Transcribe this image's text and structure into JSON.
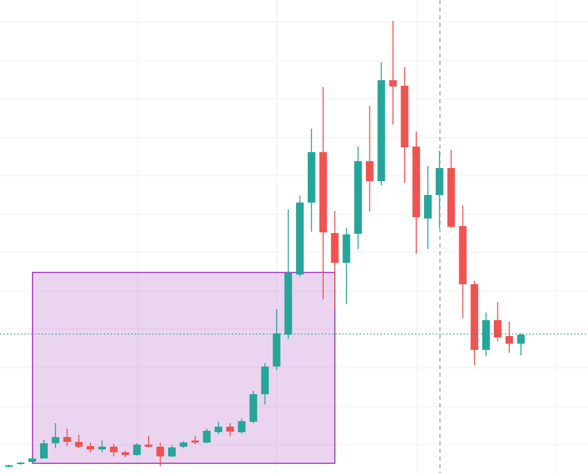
{
  "chart_data": {
    "type": "candlestick",
    "open": [
      9,
      13,
      16,
      21,
      43,
      52,
      45,
      39,
      34,
      38,
      30,
      26,
      41,
      38,
      24,
      38,
      47,
      44,
      59,
      67,
      59,
      74,
      114,
      154,
      200,
      287,
      391,
      464,
      347,
      304,
      346,
      451,
      422,
      568,
      560,
      472,
      368,
      402,
      441,
      357,
      273,
      178,
      221,
      198,
      187
    ],
    "high": [
      12,
      16,
      22,
      48,
      72,
      64,
      55,
      44,
      47,
      42,
      32,
      43,
      54,
      44,
      40,
      46,
      54,
      64,
      74,
      72,
      79,
      119,
      159,
      237,
      381,
      401,
      498,
      558,
      379,
      354,
      472,
      531,
      594,
      654,
      587,
      494,
      444,
      466,
      467,
      387,
      278,
      232,
      247,
      219,
      202
    ],
    "low": [
      8,
      12,
      15,
      21,
      36,
      39,
      36,
      30,
      30,
      24,
      23,
      25,
      37,
      10,
      23,
      36,
      42,
      43,
      56,
      53,
      57,
      72,
      99,
      149,
      194,
      284,
      349,
      251,
      237,
      244,
      324,
      378,
      416,
      504,
      419,
      317,
      324,
      354,
      354,
      224,
      156,
      169,
      190,
      174,
      170
    ],
    "close": [
      11,
      15,
      21,
      43,
      52,
      45,
      38,
      34,
      38,
      30,
      26,
      41,
      38,
      24,
      37,
      44,
      44,
      61,
      67,
      60,
      75,
      114,
      154,
      202,
      289,
      391,
      464,
      348,
      304,
      345,
      451,
      422,
      568,
      559,
      471,
      370,
      402,
      441,
      356,
      273,
      178,
      221,
      196,
      187,
      200
    ],
    "up_color": "#26a69a",
    "down_color": "#ef5350",
    "ylim": [
      0,
      684
    ],
    "yticks": [
      41,
      96,
      152,
      208,
      263,
      319,
      374,
      430,
      485,
      541,
      596,
      652
    ],
    "grid": true
  }
}
